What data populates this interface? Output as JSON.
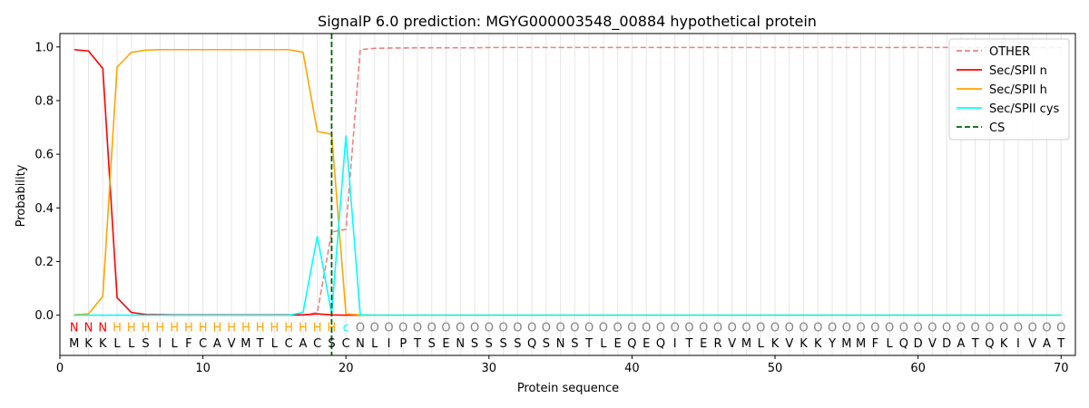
{
  "chart_data": {
    "type": "line",
    "title": "SignalP 6.0 prediction: MGYG000003548_00884 hypothetical protein",
    "xlabel": "Protein sequence",
    "ylabel": "Probability",
    "xlim": [
      0,
      71
    ],
    "ylim": [
      -0.15,
      1.05
    ],
    "xticks": [
      0,
      10,
      20,
      30,
      40,
      50,
      60,
      70
    ],
    "yticks": [
      0.0,
      0.2,
      0.4,
      0.6,
      0.8,
      1.0
    ],
    "xtick_labels": [
      "0",
      "10",
      "20",
      "30",
      "40",
      "50",
      "60",
      "70"
    ],
    "ytick_labels": [
      "0.0",
      "0.2",
      "0.4",
      "0.6",
      "0.8",
      "1.0"
    ],
    "legend_position": "top-right",
    "sequence": [
      "M",
      "K",
      "K",
      "L",
      "L",
      "S",
      "I",
      "L",
      "F",
      "C",
      "A",
      "V",
      "M",
      "T",
      "L",
      "C",
      "A",
      "C",
      "S",
      "C",
      "N",
      "L",
      "I",
      "P",
      "T",
      "S",
      "E",
      "N",
      "S",
      "S",
      "S",
      "S",
      "Q",
      "S",
      "N",
      "S",
      "T",
      "L",
      "E",
      "Q",
      "E",
      "Q",
      "I",
      "T",
      "E",
      "R",
      "V",
      "M",
      "L",
      "K",
      "V",
      "K",
      "K",
      "Y",
      "M",
      "M",
      "F",
      "L",
      "Q",
      "D",
      "V",
      "D",
      "A",
      "T",
      "Q",
      "K",
      "I",
      "V",
      "A",
      "T"
    ],
    "annotations": [
      "N",
      "N",
      "N",
      "H",
      "H",
      "H",
      "H",
      "H",
      "H",
      "H",
      "H",
      "H",
      "H",
      "H",
      "H",
      "H",
      "H",
      "H",
      "H",
      "c",
      "O",
      "O",
      "O",
      "O",
      "O",
      "O",
      "O",
      "O",
      "O",
      "O",
      "O",
      "O",
      "O",
      "O",
      "O",
      "O",
      "O",
      "O",
      "O",
      "O",
      "O",
      "O",
      "O",
      "O",
      "O",
      "O",
      "O",
      "O",
      "O",
      "O",
      "O",
      "O",
      "O",
      "O",
      "O",
      "O",
      "O",
      "O",
      "O",
      "O",
      "O",
      "O",
      "O",
      "O",
      "O",
      "O",
      "O",
      "O",
      "O",
      "O"
    ],
    "annotation_colors": {
      "N": "#ff0000",
      "H": "#ffa500",
      "c": "#00ffff",
      "O": "#808080"
    },
    "cs_position": 19,
    "series": [
      {
        "name": "OTHER",
        "color": "#f08080",
        "dash": true,
        "values": [
          0,
          0,
          0,
          0,
          0,
          0,
          0,
          0,
          0,
          0,
          0,
          0,
          0,
          0,
          0,
          0,
          0,
          0.01,
          0.31,
          0.32,
          0.99,
          0.995,
          0.996,
          0.996,
          0.997,
          0.997,
          0.997,
          0.997,
          0.997,
          0.998,
          0.998,
          0.998,
          0.998,
          0.998,
          0.998,
          0.998,
          0.998,
          0.998,
          0.998,
          0.998,
          0.998,
          0.998,
          0.998,
          0.998,
          0.998,
          0.998,
          0.998,
          0.998,
          0.998,
          0.998,
          0.998,
          0.998,
          0.998,
          0.998,
          0.998,
          0.998,
          0.998,
          0.998,
          0.998,
          0.998,
          0.998,
          0.998,
          0.998,
          0.998,
          0.998,
          0.998,
          0.998,
          0.998,
          0.998,
          0.998
        ]
      },
      {
        "name": "Sec/SPII n",
        "color": "#ff0000",
        "dash": false,
        "values": [
          0.99,
          0.985,
          0.92,
          0.065,
          0.01,
          0.003,
          0.002,
          0.001,
          0.001,
          0.001,
          0.001,
          0.001,
          0.001,
          0.001,
          0.001,
          0.001,
          0.001,
          0.005,
          0.001,
          0,
          0,
          0,
          0,
          0,
          0,
          0,
          0,
          0,
          0,
          0,
          0,
          0,
          0,
          0,
          0,
          0,
          0,
          0,
          0,
          0,
          0,
          0,
          0,
          0,
          0,
          0,
          0,
          0,
          0,
          0,
          0,
          0,
          0,
          0,
          0,
          0,
          0,
          0,
          0,
          0,
          0,
          0,
          0,
          0,
          0,
          0,
          0,
          0,
          0,
          0
        ]
      },
      {
        "name": "Sec/SPII h",
        "color": "#ffa500",
        "dash": false,
        "values": [
          0.002,
          0.005,
          0.07,
          0.925,
          0.98,
          0.988,
          0.99,
          0.99,
          0.99,
          0.99,
          0.99,
          0.99,
          0.99,
          0.99,
          0.99,
          0.99,
          0.98,
          0.685,
          0.675,
          0.005,
          0.001,
          0,
          0,
          0,
          0,
          0,
          0,
          0,
          0,
          0,
          0,
          0,
          0,
          0,
          0,
          0,
          0,
          0,
          0,
          0,
          0,
          0,
          0,
          0,
          0,
          0,
          0,
          0,
          0,
          0,
          0,
          0,
          0,
          0,
          0,
          0,
          0,
          0,
          0,
          0,
          0,
          0,
          0,
          0,
          0,
          0,
          0,
          0,
          0,
          0
        ]
      },
      {
        "name": "Sec/SPII cys",
        "color": "#00ffff",
        "dash": false,
        "values": [
          0,
          0,
          0,
          0,
          0,
          0,
          0,
          0,
          0,
          0,
          0,
          0,
          0,
          0,
          0,
          0,
          0.01,
          0.295,
          0.005,
          0.67,
          0.001,
          0,
          0,
          0,
          0,
          0,
          0,
          0,
          0,
          0,
          0,
          0,
          0,
          0,
          0,
          0,
          0,
          0,
          0,
          0,
          0,
          0,
          0,
          0,
          0,
          0,
          0,
          0,
          0,
          0,
          0,
          0,
          0,
          0,
          0,
          0,
          0,
          0,
          0,
          0,
          0,
          0,
          0,
          0,
          0,
          0,
          0,
          0,
          0,
          0
        ]
      }
    ],
    "legend": [
      {
        "label": "OTHER",
        "color": "#f08080",
        "dash": "dashed"
      },
      {
        "label": "Sec/SPII n",
        "color": "#ff0000",
        "dash": "solid"
      },
      {
        "label": "Sec/SPII h",
        "color": "#ffa500",
        "dash": "solid"
      },
      {
        "label": "Sec/SPII cys",
        "color": "#00ffff",
        "dash": "solid"
      },
      {
        "label": "CS",
        "color": "#006400",
        "dash": "dashed"
      }
    ]
  }
}
